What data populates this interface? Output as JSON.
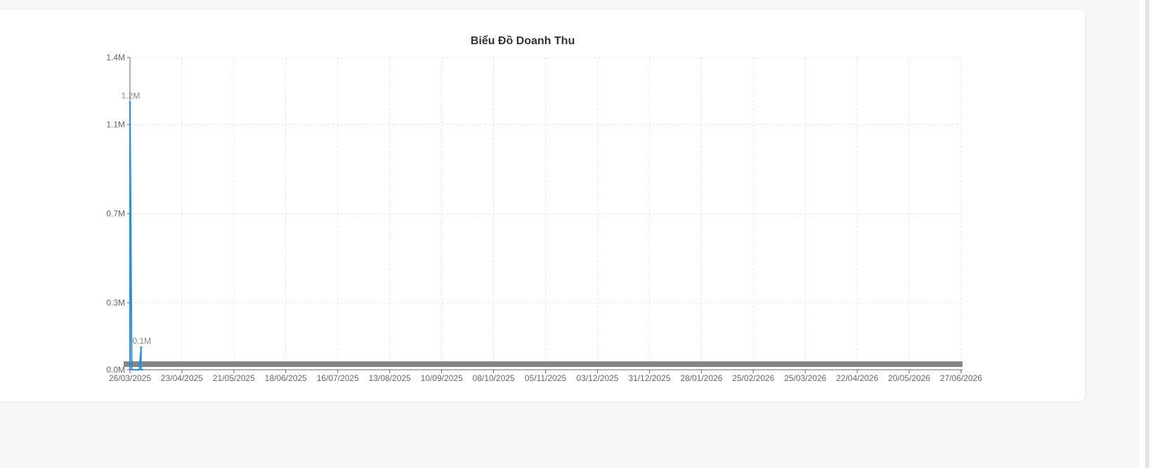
{
  "chart_data": {
    "type": "line",
    "title": "Biểu Đồ Doanh Thu",
    "xlabel": "",
    "ylabel": "",
    "x_ticks": [
      "26/03/2025",
      "23/04/2025",
      "21/05/2025",
      "18/06/2025",
      "16/07/2025",
      "13/08/2025",
      "10/09/2025",
      "08/10/2025",
      "05/11/2025",
      "03/12/2025",
      "31/12/2025",
      "28/01/2026",
      "25/02/2026",
      "25/03/2026",
      "22/04/2026",
      "20/05/2026",
      "27/06/2026"
    ],
    "y_ticks": [
      "0.0M",
      "0.3M",
      "0.7M",
      "1.1M",
      "1.4M"
    ],
    "ylim": [
      0,
      1.4
    ],
    "y_unit": "M",
    "grid": true,
    "color": "#2f8fd6",
    "series": [
      {
        "x": [
          "26/03/2025",
          "26/03/2025",
          "27/03/2025",
          "31/03/2025",
          "01/04/2025",
          "01/04/2025",
          "02/04/2025"
        ],
        "values": [
          0,
          1.2,
          0,
          0,
          0.1,
          0,
          0
        ],
        "labels": [
          "",
          "1.2M",
          "",
          "",
          "0.1M",
          "",
          ""
        ]
      }
    ]
  }
}
